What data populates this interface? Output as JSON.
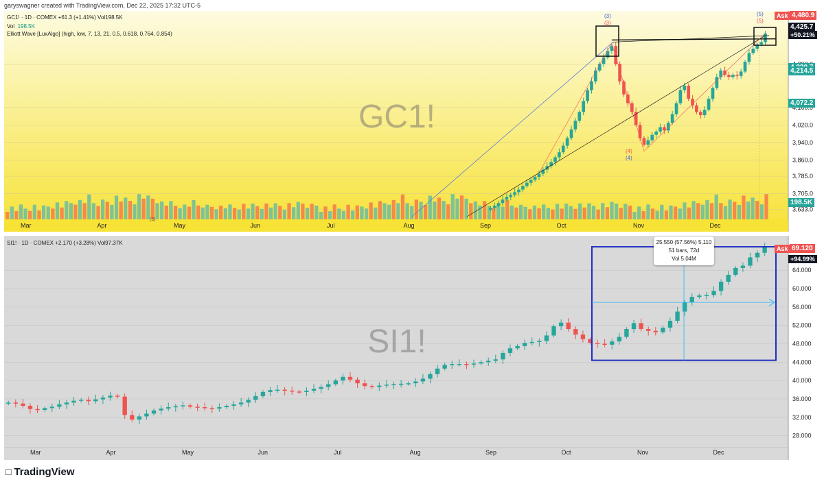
{
  "header": {
    "credit": "garyswagner created with TradingView.com, Dec 22, 2025 17:32 UTC-5"
  },
  "brand": {
    "name": "TradingView"
  },
  "top_panel": {
    "symbol_line": "GC1! · 1D · COMEX  +61.3 (+1.41%)  Vol198.5K",
    "vol_label": "Vol",
    "vol_value": "198.5K",
    "indicator_line": "Elliott Wave [LuxAlgo] (high, low, 7, 13, 21, 0.5, 0.618, 0.764, 0.854)",
    "watermark": "GC1!",
    "ask_label": "Ask",
    "ask_price": "4,480.9",
    "last_price": "4,425.7",
    "pct_change": "+50.21%",
    "price_tag_2": "4,214.5",
    "price_tag_2b": "4,230.7",
    "price_tag_3": "4,072.2",
    "vol_tag": "198.5K",
    "wave_labels": {
      "w3_blue": "(3)",
      "w3_red": "(3)",
      "w4_red": "(4)",
      "w4_blue": "(4)",
      "w5_blue": "(5)",
      "w5_red": "(5)",
      "w5_small": "(5)"
    },
    "colors": {
      "bg_top": "#fdfbe0",
      "bg_bottom": "#f7e236",
      "up": "#26a69a",
      "down": "#ef5350",
      "vol_up": "#7fc394",
      "vol_down": "#f58a4b"
    }
  },
  "bottom_panel": {
    "symbol_line": "SI1! · 1D · COMEX  +2.170 (+3.28%)  Vol97.37K",
    "watermark": "SI1!",
    "ask_label": "Ask",
    "ask_price": "69.120",
    "pct_change": "+94.99%",
    "measure": {
      "line1": "25.550 (57.56%) 5,110",
      "line2": "51 bars, 72d",
      "line3": "Vol 5.04M"
    },
    "colors": {
      "bg": "#d9d9d9",
      "box": "#1e2fc2",
      "crosshair": "#29b6f6"
    }
  },
  "chart_data": [
    {
      "type": "candlestick",
      "title": "",
      "symbol": "GC1!",
      "x_ticks": [
        "Mar",
        "Apr",
        "May",
        "Jun",
        "Jul",
        "Aug",
        "Sep",
        "Oct",
        "Nov",
        "Dec"
      ],
      "y_ticks": [
        "4,100.0",
        "4,020.0",
        "3,940.0",
        "3,860.0",
        "3,785.0",
        "3,705.0",
        "3,633.0"
      ],
      "y_ticks_upper": [
        "4,300.0"
      ],
      "ylim": [
        3600,
        4480
      ],
      "series": [
        {
          "name": "",
          "close": [
            3640,
            3650,
            3662,
            3678,
            3690,
            3700,
            3712,
            3724,
            3740,
            3755,
            3768,
            3782,
            3796,
            3815,
            3832,
            3850,
            3872,
            3895,
            3925,
            3960,
            4000,
            4040,
            4080,
            4130,
            4180,
            4220,
            4270,
            4300,
            4330,
            4360,
            4382,
            4300,
            4220,
            4160,
            4120,
            4080,
            4020,
            3960,
            3930,
            3950,
            3975,
            3990,
            4010,
            3995,
            4030,
            4070,
            4120,
            4180,
            4200,
            4140,
            4110,
            4080,
            4065,
            4090,
            4140,
            4190,
            4240,
            4270,
            4250,
            4240,
            4250,
            4245,
            4265,
            4310,
            4350,
            4370,
            4390,
            4400,
            4440
          ]
        }
      ],
      "volume": [
        120,
        135,
        110,
        140,
        125,
        130,
        150,
        115,
        128,
        145,
        160,
        170,
        150,
        165,
        180,
        210,
        190,
        200,
        220,
        175,
        185,
        190,
        210,
        230,
        250,
        240,
        205,
        215,
        230,
        260,
        270,
        220,
        235,
        240,
        180,
        175,
        165,
        150,
        160,
        145,
        155,
        170,
        150,
        165,
        140,
        150,
        160,
        145,
        150,
        140,
        135,
        150,
        160,
        140,
        145,
        150,
        155,
        160,
        150,
        145,
        150,
        140,
        160,
        150,
        155,
        170,
        160,
        150,
        165
      ]
    },
    {
      "type": "candlestick",
      "title": "",
      "symbol": "SI1!",
      "x_ticks": [
        "Mar",
        "Apr",
        "May",
        "Jun",
        "Jul",
        "Aug",
        "Sep",
        "Oct",
        "Nov",
        "Dec"
      ],
      "y_ticks": [
        "64.000",
        "60.000",
        "56.000",
        "52.000",
        "48.000",
        "44.000",
        "40.000",
        "36.000",
        "32.000",
        "28.000"
      ],
      "ylim": [
        26,
        70
      ],
      "series": [
        {
          "name": "",
          "close": [
            35.2,
            35.0,
            34.5,
            33.8,
            33.6,
            34.0,
            34.3,
            34.8,
            35.2,
            35.6,
            35.8,
            35.5,
            35.9,
            36.3,
            36.7,
            36.5,
            32.5,
            31.5,
            32.2,
            32.8,
            33.5,
            33.9,
            34.2,
            34.4,
            34.6,
            34.3,
            34.2,
            34.0,
            33.9,
            34.2,
            34.5,
            34.8,
            35.2,
            35.8,
            36.6,
            37.5,
            37.9,
            38.0,
            37.8,
            37.6,
            37.5,
            37.8,
            38.2,
            38.6,
            39.2,
            40.0,
            40.8,
            40.2,
            39.4,
            38.8,
            38.6,
            38.9,
            39.1,
            39.2,
            39.3,
            39.4,
            39.8,
            40.4,
            41.4,
            42.6,
            43.4,
            43.6,
            43.6,
            43.5,
            43.7,
            44.0,
            44.3,
            44.6,
            46.0,
            47.0,
            47.5,
            48.2,
            48.4,
            48.6,
            49.8,
            51.8,
            52.6,
            51.2,
            50.0,
            49.0,
            48.2,
            48.0,
            47.8,
            48.5,
            49.5,
            51.2,
            52.5,
            51.2,
            50.8,
            50.5,
            51.5,
            53.0,
            55.0,
            57.0,
            58.2,
            58.5,
            58.6,
            59.5,
            61.5,
            63.0,
            64.5,
            65.0,
            66.8,
            67.8,
            69.1
          ]
        }
      ]
    }
  ]
}
